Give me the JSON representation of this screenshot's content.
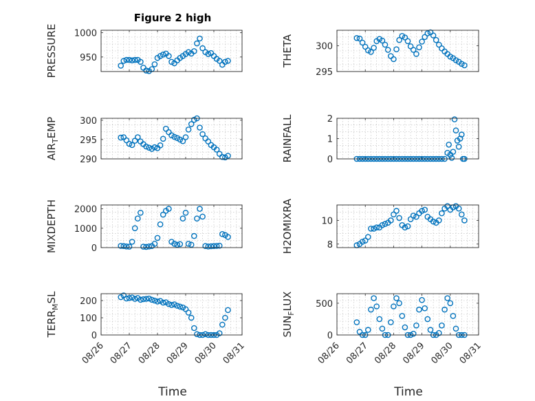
{
  "chart_data": {
    "type": "scatter",
    "title": "Figure 2 high",
    "marker_color": "#0072bd",
    "x_axis": {
      "label": "Time",
      "tick_labels": [
        "08/26",
        "08/27",
        "08/28",
        "08/29",
        "08/30",
        "08/31"
      ],
      "lim": [
        0,
        5
      ]
    },
    "panels": [
      {
        "name": "pressure",
        "ylabel": "PRESSURE",
        "ylabel_sub": [],
        "ylim": [
          920,
          1005
        ],
        "yticks": [
          950,
          1000
        ],
        "ytick_labels": [
          "950",
          "1000"
        ],
        "x": [
          0.7,
          0.8,
          0.9,
          1.0,
          1.1,
          1.2,
          1.3,
          1.4,
          1.5,
          1.6,
          1.7,
          1.8,
          1.9,
          2.0,
          2.1,
          2.2,
          2.3,
          2.4,
          2.5,
          2.6,
          2.7,
          2.8,
          2.9,
          3.0,
          3.1,
          3.2,
          3.3,
          3.4,
          3.5,
          3.6,
          3.7,
          3.8,
          3.9,
          4.0,
          4.1,
          4.2,
          4.3,
          4.4,
          4.5
        ],
        "y": [
          932,
          942,
          944,
          944,
          943,
          944,
          944,
          940,
          928,
          922,
          921,
          925,
          935,
          948,
          952,
          955,
          957,
          952,
          940,
          937,
          943,
          948,
          952,
          956,
          960,
          957,
          962,
          978,
          988,
          968,
          960,
          956,
          958,
          952,
          946,
          942,
          934,
          940,
          942
        ]
      },
      {
        "name": "theta",
        "ylabel": "THETA",
        "ylabel_sub": [],
        "ylim": [
          295,
          303
        ],
        "yticks": [
          295,
          300
        ],
        "ytick_labels": [
          "295",
          "300"
        ],
        "x": [
          0.7,
          0.8,
          0.9,
          1.0,
          1.1,
          1.2,
          1.3,
          1.4,
          1.5,
          1.6,
          1.7,
          1.8,
          1.9,
          2.0,
          2.1,
          2.2,
          2.3,
          2.4,
          2.5,
          2.6,
          2.7,
          2.8,
          2.9,
          3.0,
          3.1,
          3.2,
          3.3,
          3.4,
          3.5,
          3.6,
          3.7,
          3.8,
          3.9,
          4.0,
          4.1,
          4.2,
          4.3,
          4.4,
          4.5
        ],
        "y": [
          301.5,
          301.4,
          300.6,
          299.8,
          299.1,
          298.8,
          299.6,
          300.9,
          301.3,
          301.0,
          300.2,
          299.2,
          298.0,
          297.4,
          299.3,
          301.1,
          301.9,
          301.6,
          300.9,
          299.9,
          299.2,
          298.4,
          299.7,
          300.8,
          301.7,
          302.4,
          302.6,
          302.0,
          301.1,
          300.2,
          299.5,
          298.9,
          298.4,
          297.9,
          297.6,
          297.2,
          296.9,
          296.5,
          296.2
        ]
      },
      {
        "name": "air-temp",
        "ylabel": "AIR",
        "ylabel_sub": [
          "T",
          "EMP"
        ],
        "ylim": [
          290,
          300.5
        ],
        "yticks": [
          290,
          295,
          300
        ],
        "ytick_labels": [
          "290",
          "295",
          "300"
        ],
        "x": [
          0.7,
          0.8,
          0.9,
          1.0,
          1.1,
          1.2,
          1.3,
          1.4,
          1.5,
          1.6,
          1.7,
          1.8,
          1.9,
          2.0,
          2.1,
          2.2,
          2.3,
          2.4,
          2.5,
          2.6,
          2.7,
          2.8,
          2.9,
          3.0,
          3.1,
          3.2,
          3.3,
          3.4,
          3.5,
          3.6,
          3.7,
          3.8,
          3.9,
          4.0,
          4.1,
          4.2,
          4.3,
          4.4,
          4.5
        ],
        "y": [
          295.5,
          295.6,
          294.8,
          293.9,
          293.6,
          294.7,
          295.6,
          294.5,
          293.8,
          293.2,
          292.9,
          292.6,
          293.0,
          292.8,
          293.5,
          295.2,
          297.8,
          296.9,
          296.1,
          295.7,
          295.4,
          295.0,
          294.6,
          295.6,
          297.6,
          299.0,
          300.1,
          300.5,
          298.1,
          296.4,
          295.3,
          294.5,
          293.6,
          293.0,
          292.4,
          291.3,
          290.5,
          290.4,
          290.8
        ]
      },
      {
        "name": "rainfall",
        "ylabel": "RAINFALL",
        "ylabel_sub": [],
        "ylim": [
          0,
          2
        ],
        "yticks": [
          0,
          1,
          2
        ],
        "ytick_labels": [
          "0",
          "1",
          "2"
        ],
        "x": [
          0.7,
          0.8,
          0.9,
          1.0,
          1.1,
          1.2,
          1.3,
          1.4,
          1.5,
          1.6,
          1.7,
          1.8,
          1.9,
          2.0,
          2.1,
          2.2,
          2.3,
          2.4,
          2.5,
          2.6,
          2.7,
          2.8,
          2.9,
          3.0,
          3.1,
          3.2,
          3.3,
          3.4,
          3.5,
          3.6,
          3.7,
          3.8,
          3.9,
          3.95,
          4.0,
          4.05,
          4.1,
          4.15,
          4.2,
          4.25,
          4.3,
          4.35,
          4.4,
          4.45,
          4.5
        ],
        "y": [
          0,
          0,
          0,
          0,
          0,
          0,
          0,
          0,
          0,
          0,
          0,
          0,
          0,
          0,
          0,
          0,
          0,
          0,
          0,
          0,
          0,
          0,
          0,
          0,
          0,
          0,
          0,
          0,
          0,
          0,
          0,
          0,
          0.3,
          0.7,
          0.2,
          0.05,
          0.35,
          1.95,
          1.4,
          0.9,
          0.6,
          1.0,
          1.2,
          0,
          0
        ]
      },
      {
        "name": "mixdepth",
        "ylabel": "MIXDEPTH",
        "ylabel_sub": [],
        "ylim": [
          0,
          2200
        ],
        "yticks": [
          0,
          1000,
          2000
        ],
        "ytick_labels": [
          "0",
          "1000",
          "2000"
        ],
        "x": [
          0.7,
          0.8,
          0.9,
          1.0,
          1.1,
          1.2,
          1.3,
          1.4,
          1.5,
          1.6,
          1.7,
          1.8,
          1.9,
          2.0,
          2.1,
          2.2,
          2.3,
          2.4,
          2.5,
          2.6,
          2.7,
          2.8,
          2.9,
          3.0,
          3.1,
          3.2,
          3.3,
          3.4,
          3.5,
          3.6,
          3.7,
          3.8,
          3.9,
          4.0,
          4.1,
          4.2,
          4.3,
          4.4,
          4.5
        ],
        "y": [
          90,
          80,
          60,
          50,
          300,
          1000,
          1500,
          1800,
          50,
          40,
          60,
          80,
          200,
          500,
          1200,
          1700,
          1900,
          2000,
          300,
          200,
          150,
          180,
          1500,
          1800,
          200,
          150,
          600,
          1500,
          2000,
          1600,
          80,
          60,
          70,
          80,
          90,
          100,
          700,
          650,
          550
        ]
      },
      {
        "name": "h2omixra",
        "ylabel": "H2OMIXRA",
        "ylabel_sub": [],
        "ylim": [
          7.7,
          11.3
        ],
        "yticks": [
          8,
          10
        ],
        "ytick_labels": [
          "8",
          "10"
        ],
        "x": [
          0.7,
          0.8,
          0.9,
          1.0,
          1.1,
          1.2,
          1.3,
          1.4,
          1.5,
          1.6,
          1.7,
          1.8,
          1.9,
          2.0,
          2.1,
          2.2,
          2.3,
          2.4,
          2.5,
          2.6,
          2.7,
          2.8,
          2.9,
          3.0,
          3.1,
          3.2,
          3.3,
          3.4,
          3.5,
          3.6,
          3.7,
          3.8,
          3.9,
          4.0,
          4.1,
          4.2,
          4.3,
          4.4,
          4.5
        ],
        "y": [
          7.9,
          8.0,
          8.2,
          8.3,
          8.6,
          9.3,
          9.3,
          9.4,
          9.4,
          9.6,
          9.7,
          9.8,
          10.0,
          10.5,
          10.8,
          10.2,
          9.6,
          9.4,
          9.5,
          10.1,
          10.4,
          10.3,
          10.6,
          10.8,
          10.9,
          10.3,
          10.1,
          9.9,
          9.8,
          10.0,
          10.6,
          11.0,
          11.2,
          10.9,
          11.1,
          11.2,
          11.0,
          10.5,
          10.0
        ]
      },
      {
        "name": "terr-msl",
        "ylabel": "TERR",
        "ylabel_sub": [
          "M",
          "SL"
        ],
        "ylim": [
          0,
          240
        ],
        "yticks": [
          0,
          100,
          200
        ],
        "ytick_labels": [
          "0",
          "100",
          "200"
        ],
        "x": [
          0.7,
          0.8,
          0.9,
          1.0,
          1.1,
          1.2,
          1.3,
          1.4,
          1.5,
          1.6,
          1.7,
          1.8,
          1.9,
          2.0,
          2.1,
          2.2,
          2.3,
          2.4,
          2.5,
          2.6,
          2.7,
          2.8,
          2.9,
          3.0,
          3.1,
          3.2,
          3.3,
          3.4,
          3.5,
          3.6,
          3.7,
          3.8,
          3.9,
          4.0,
          4.1,
          4.2,
          4.3,
          4.4,
          4.5
        ],
        "y": [
          220,
          230,
          212,
          215,
          218,
          210,
          215,
          205,
          208,
          210,
          212,
          205,
          200,
          195,
          198,
          188,
          190,
          180,
          175,
          178,
          170,
          165,
          160,
          150,
          130,
          100,
          40,
          5,
          0,
          0,
          5,
          0,
          0,
          0,
          0,
          10,
          60,
          100,
          145
        ]
      },
      {
        "name": "sun-flux",
        "ylabel": "SUN",
        "ylabel_sub": [
          "F",
          "LUX"
        ],
        "ylim": [
          0,
          650
        ],
        "yticks": [
          0,
          500
        ],
        "ytick_labels": [
          "0",
          "500"
        ],
        "x": [
          0.7,
          0.8,
          0.9,
          1.0,
          1.1,
          1.2,
          1.3,
          1.4,
          1.5,
          1.6,
          1.7,
          1.8,
          1.9,
          2.0,
          2.1,
          2.2,
          2.3,
          2.4,
          2.5,
          2.6,
          2.7,
          2.8,
          2.9,
          3.0,
          3.1,
          3.2,
          3.3,
          3.4,
          3.5,
          3.6,
          3.7,
          3.8,
          3.9,
          4.0,
          4.1,
          4.2,
          4.3,
          4.4,
          4.5
        ],
        "y": [
          200,
          50,
          0,
          0,
          80,
          400,
          580,
          450,
          250,
          100,
          0,
          0,
          200,
          450,
          580,
          500,
          300,
          120,
          0,
          0,
          20,
          150,
          400,
          550,
          420,
          250,
          80,
          0,
          0,
          30,
          150,
          400,
          580,
          500,
          300,
          100,
          0,
          0,
          0
        ]
      }
    ]
  }
}
